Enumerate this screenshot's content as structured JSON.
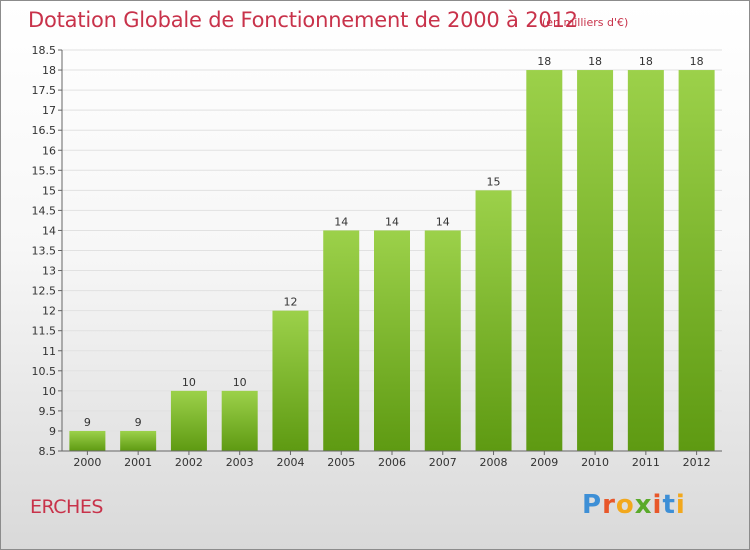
{
  "header": {
    "title": "Dotation Globale de Fonctionnement de 2000 à 2012",
    "subtitle": "(en milliers d'€)"
  },
  "footer": {
    "commune": "ERCHES",
    "brand_letters": [
      "P",
      "r",
      "o",
      "x",
      "i",
      "t",
      "i"
    ],
    "brand_colors": [
      "#3d8fd6",
      "#e8572a",
      "#f2a81d",
      "#5aaa2a",
      "#e8572a",
      "#3d8fd6",
      "#f2a81d"
    ]
  },
  "chart_data": {
    "type": "bar",
    "categories": [
      "2000",
      "2001",
      "2002",
      "2003",
      "2004",
      "2005",
      "2006",
      "2007",
      "2008",
      "2009",
      "2010",
      "2011",
      "2012"
    ],
    "values": [
      9,
      9,
      10,
      10,
      12,
      14,
      14,
      14,
      15,
      18,
      18,
      18,
      18
    ],
    "data_labels": [
      "9",
      "9",
      "10",
      "10",
      "12",
      "14",
      "14",
      "14",
      "15",
      "18",
      "18",
      "18",
      "18"
    ],
    "ylim": [
      8.5,
      18.5
    ],
    "yticks": [
      "8.5",
      "9",
      "9.5",
      "10",
      "10.5",
      "11",
      "11.5",
      "12",
      "12.5",
      "13",
      "13.5",
      "14",
      "14.5",
      "15",
      "15.5",
      "16",
      "16.5",
      "17",
      "17.5",
      "18",
      "18.5"
    ],
    "grid": true,
    "bar_color_top": "#9cd14a",
    "bar_color_bottom": "#5e9a12"
  }
}
